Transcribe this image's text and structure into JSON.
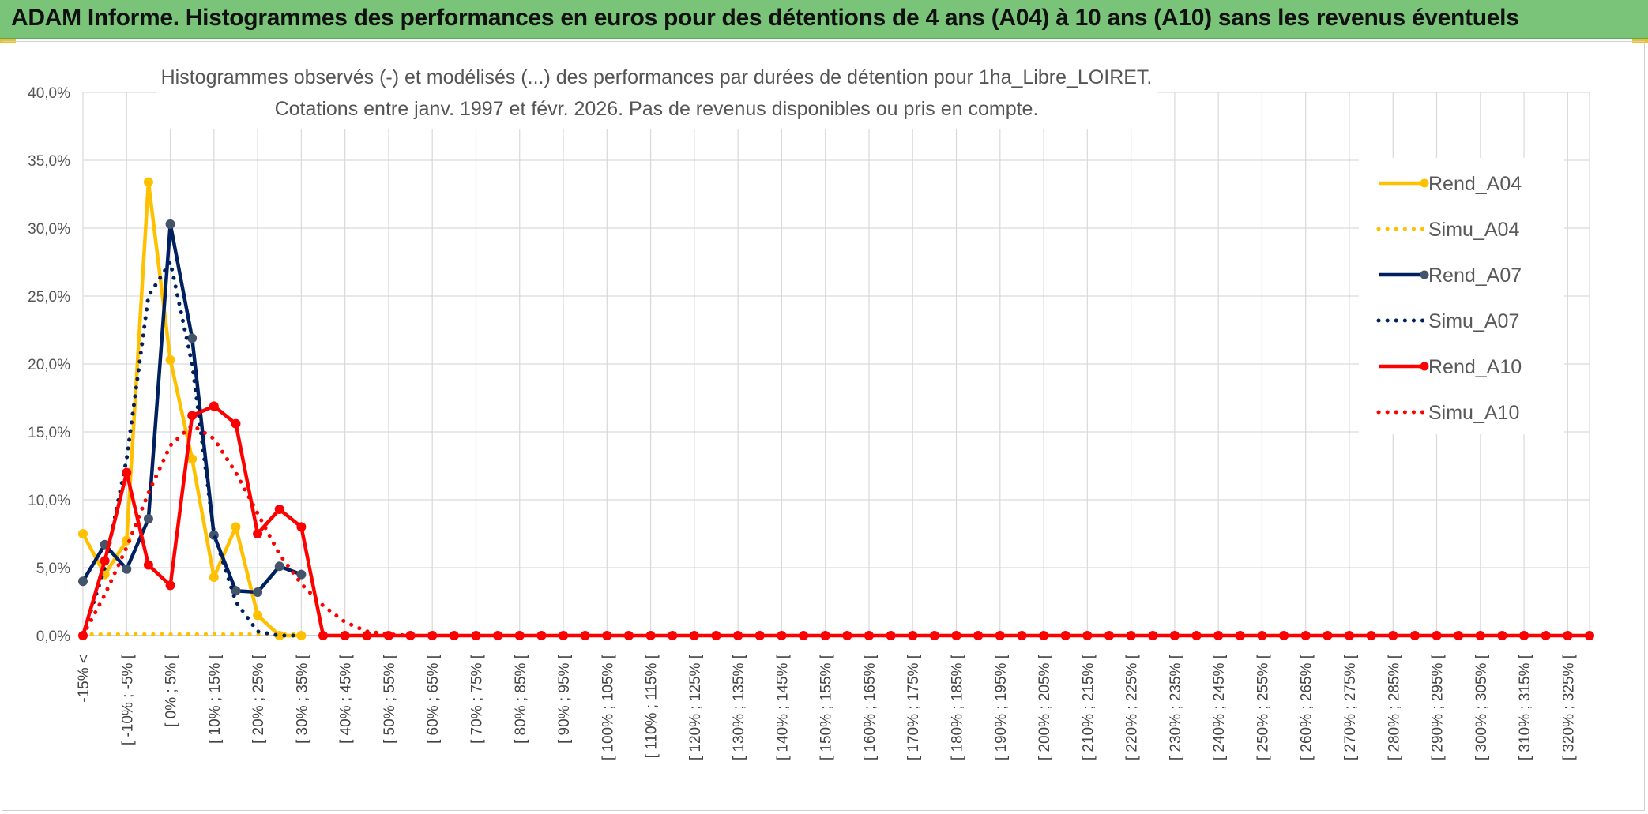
{
  "banner": {
    "title": "ADAM Informe. Histogrammes des performances en euros pour des détentions de 4 ans (A04) à 10 ans (A10) sans les revenus éventuels"
  },
  "chart_data": {
    "type": "line",
    "title": "Histogrammes observés (-) et modélisés (...) des performances par durées de détention pour 1ha_Libre_LOIRET.",
    "subtitle": "Cotations entre janv. 1997 et févr. 2026. Pas de revenus disponibles ou pris en compte.",
    "ylim": [
      0,
      40
    ],
    "yticks": [
      "0,0%",
      "5,0%",
      "10,0%",
      "15,0%",
      "20,0%",
      "25,0%",
      "30,0%",
      "35,0%",
      "40,0%"
    ],
    "grid": true,
    "legend_position": "right",
    "categories": [
      "-15% <",
      "[ -10% ; -5% [",
      "[ 0% ; 5% [",
      "[ 10% ; 15% [",
      "[ 20% ; 25% [",
      "[ 30% ; 35% [",
      "[ 40% ; 45% [",
      "[ 50% ; 55% [",
      "[ 60% ; 65% [",
      "[ 70% ; 75% [",
      "[ 80% ; 85% [",
      "[ 90% ; 95% [",
      "[ 100% ; 105% [",
      "[ 110% ; 115% [",
      "[ 120% ; 125% [",
      "[ 130% ; 135% [",
      "[ 140% ; 145% [",
      "[ 150% ; 155% [",
      "[ 160% ; 165% [",
      "[ 170% ; 175% [",
      "[ 180% ; 185% [",
      "[ 190% ; 195% [",
      "[ 200% ; 205% [",
      "[ 210% ; 215% [",
      "[ 220% ; 225% [",
      "[ 230% ; 235% [",
      "[ 240% ; 245% [",
      "[ 250% ; 255% [",
      "[ 260% ; 265% [",
      "[ 270% ; 275% [",
      "[ 280% ; 285% [",
      "[ 290% ; 295% [",
      "[ 300% ; 305% [",
      "[ 310% ; 315% [",
      "[ 320% ; 325% ["
    ],
    "x_range": [
      -15,
      330
    ],
    "series": [
      {
        "name": "Rend_A04",
        "color": "#ffc000",
        "style": "solid",
        "markers": true,
        "x": [
          -15,
          -10,
          -5,
          0,
          5,
          10,
          15,
          20,
          25,
          30,
          35
        ],
        "y": [
          7.5,
          4.5,
          7.0,
          33.4,
          20.3,
          13.0,
          4.3,
          8.0,
          1.5,
          0.0,
          0.0
        ]
      },
      {
        "name": "Simu_A04",
        "color": "#ffc000",
        "style": "dotted",
        "markers": false,
        "x": [
          -15,
          35
        ],
        "y": [
          0.1,
          0.1
        ]
      },
      {
        "name": "Rend_A07",
        "color": "#002060",
        "style": "solid",
        "markers": true,
        "x": [
          -15,
          -10,
          -5,
          0,
          5,
          10,
          15,
          20,
          25,
          30,
          35
        ],
        "y": [
          4.0,
          6.7,
          4.9,
          8.6,
          30.3,
          21.9,
          7.4,
          3.3,
          3.2,
          5.1,
          4.5
        ]
      },
      {
        "name": "Simu_A07",
        "color": "#002060",
        "style": "dotted",
        "markers": false,
        "x": [
          -15,
          -10,
          -5,
          0,
          5,
          10,
          15,
          20,
          25,
          30,
          35
        ],
        "y": [
          0.0,
          5.0,
          13.0,
          25.0,
          27.5,
          20.0,
          7.5,
          2.5,
          0.3,
          0.0,
          0.0
        ]
      },
      {
        "name": "Rend_A10",
        "color": "#ff0000",
        "style": "solid",
        "markers": true,
        "x": [
          -15,
          -10,
          -5,
          0,
          5,
          10,
          15,
          20,
          25,
          30,
          35,
          40,
          45,
          50,
          55,
          60,
          65,
          70,
          75,
          80,
          85,
          90,
          95,
          100,
          105,
          110,
          115,
          120,
          125,
          130,
          135,
          140,
          145,
          150,
          155,
          160,
          165,
          170,
          175,
          180,
          185,
          190,
          195,
          200,
          205,
          210,
          215,
          220,
          225,
          230,
          235,
          240,
          245,
          250,
          255,
          260,
          265,
          270,
          275,
          280,
          285,
          290,
          295,
          300,
          305,
          310,
          315,
          320,
          325,
          330
        ],
        "y": [
          0.0,
          5.5,
          12.0,
          5.2,
          3.7,
          16.2,
          16.9,
          15.6,
          7.5,
          9.3,
          8.0,
          0.0,
          0.0,
          0.0,
          0.0,
          0.0,
          0.0,
          0.0,
          0.0,
          0.0,
          0.0,
          0.0,
          0.0,
          0.0,
          0.0,
          0.0,
          0.0,
          0.0,
          0.0,
          0.0,
          0.0,
          0.0,
          0.0,
          0.0,
          0.0,
          0.0,
          0.0,
          0.0,
          0.0,
          0.0,
          0.0,
          0.0,
          0.0,
          0.0,
          0.0,
          0.0,
          0.0,
          0.0,
          0.0,
          0.0,
          0.0,
          0.0,
          0.0,
          0.0,
          0.0,
          0.0,
          0.0,
          0.0,
          0.0,
          0.0,
          0.0,
          0.0,
          0.0,
          0.0,
          0.0,
          0.0,
          0.0,
          0.0,
          0.0,
          0.0
        ]
      },
      {
        "name": "Simu_A10",
        "color": "#ff0000",
        "style": "dotted",
        "markers": false,
        "x": [
          -15,
          -10,
          -5,
          0,
          5,
          10,
          15,
          20,
          25,
          30,
          35,
          40,
          45,
          50,
          55,
          60
        ],
        "y": [
          0.0,
          3.0,
          6.5,
          10.5,
          14.0,
          15.5,
          14.5,
          12.0,
          9.0,
          6.0,
          3.8,
          2.2,
          1.0,
          0.3,
          0.1,
          0.0
        ]
      }
    ]
  }
}
